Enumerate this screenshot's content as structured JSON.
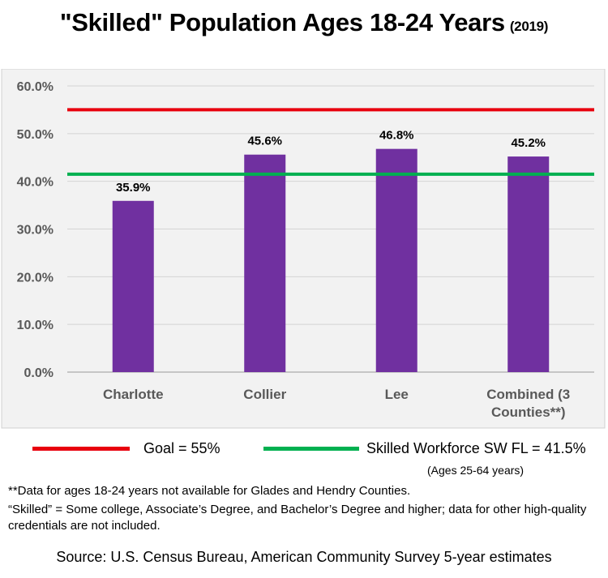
{
  "title": {
    "main": "\"Skilled\" Population Ages 18-24 Years",
    "year": "(2019)"
  },
  "chart_data": {
    "type": "bar",
    "categories": [
      [
        "Charlotte"
      ],
      [
        "Collier"
      ],
      [
        "Lee"
      ],
      [
        "Combined (3",
        "Counties**)"
      ]
    ],
    "series": [
      {
        "values": [
          35.9,
          45.6,
          46.8,
          45.2
        ],
        "color": "#7030a0"
      }
    ],
    "data_labels": [
      "35.9%",
      "45.6%",
      "46.8%",
      "45.2%"
    ],
    "ylim": [
      0,
      60
    ],
    "yticks": [
      0,
      10,
      20,
      30,
      40,
      50,
      60
    ],
    "ytick_labels": [
      "0.0%",
      "10.0%",
      "20.0%",
      "30.0%",
      "40.0%",
      "50.0%",
      "60.0%"
    ],
    "reference_lines": [
      {
        "label": "Goal = 55%",
        "value": 55,
        "color": "#e8000e"
      },
      {
        "label": "Skilled Workforce SW FL = 41.5%",
        "sublabel": "(Ages 25-64 years)",
        "value": 41.5,
        "color": "#00b050"
      }
    ],
    "grid": true,
    "legend": "bottom",
    "plot_background": "#f2f2f2"
  },
  "notes": {
    "note1": "**Data for ages 18-24 years not available for Glades and Hendry Counties.",
    "note2": "“Skilled” = Some college, Associate’s Degree, and Bachelor’s Degree and higher; data for other high-quality credentials are not included."
  },
  "source": "Source:  U.S. Census Bureau, American Community Survey 5-year estimates"
}
